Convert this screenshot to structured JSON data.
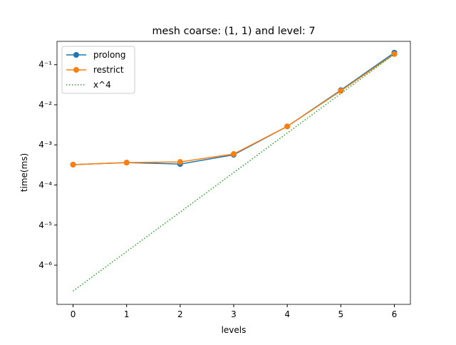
{
  "chart_data": {
    "type": "line",
    "title": "mesh coarse: (1, 1) and level: 7",
    "xlabel": "levels",
    "ylabel": "time(ms)",
    "x": [
      0,
      1,
      2,
      3,
      4,
      5,
      6
    ],
    "series": [
      {
        "name": "prolong",
        "color": "#1f77b4",
        "marker": "o",
        "linestyle": "solid",
        "values": [
          0.00789,
          0.00846,
          0.00805,
          0.0111,
          0.0296,
          0.1035,
          0.379
        ]
      },
      {
        "name": "restrict",
        "color": "#ff7f0e",
        "marker": "o",
        "linestyle": "solid",
        "values": [
          0.00789,
          0.00846,
          0.00867,
          0.0114,
          0.0296,
          0.101,
          0.361
        ]
      },
      {
        "name": "x^4",
        "color": "#2ca02c",
        "marker": null,
        "linestyle": "dotted",
        "values": [
          0.0001,
          0.000391,
          0.00153,
          0.006,
          0.0235,
          0.092,
          0.36
        ]
      }
    ],
    "xlim": [
      -0.3,
      6.3
    ],
    "xticks": [
      0,
      1,
      2,
      3,
      4,
      5,
      6
    ],
    "ylim": [
      6.3e-05,
      0.56
    ],
    "yscale": "log",
    "logbase": 4,
    "yticks": [
      {
        "value": 0.25,
        "label": "4⁻¹"
      },
      {
        "value": 0.0625,
        "label": "4⁻²"
      },
      {
        "value": 0.015625,
        "label": "4⁻³"
      },
      {
        "value": 0.00390625,
        "label": "4⁻⁴"
      },
      {
        "value": 0.0009765625,
        "label": "4⁻⁵"
      },
      {
        "value": 0.000244140625,
        "label": "4⁻⁶"
      }
    ],
    "legend": "upper left"
  }
}
